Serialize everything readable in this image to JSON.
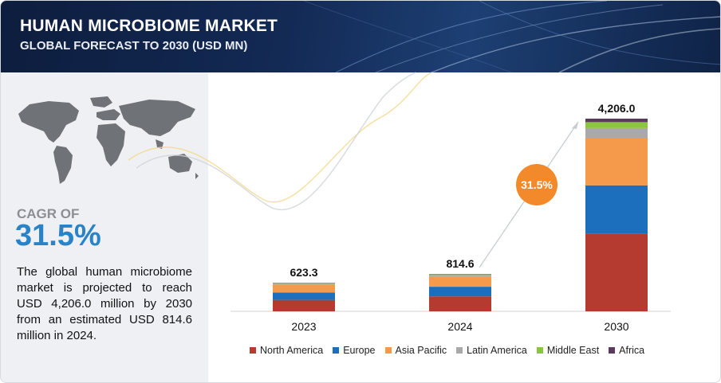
{
  "header": {
    "title": "HUMAN MICROBIOME MARKET",
    "subtitle": "GLOBAL FORECAST TO 2030 (USD MN)"
  },
  "sidebar": {
    "cagr_label": "CAGR OF",
    "cagr_value": "31.5%",
    "description": "The global human microbiome market is projected to reach USD 4,206.0 million by 2030 from an estimated USD 814.6 million in 2024.",
    "map_icon": "world-map-icon"
  },
  "chart_data": {
    "type": "bar",
    "stacked": true,
    "categories": [
      "2023",
      "2024",
      "2030"
    ],
    "totals": [
      623.3,
      814.6,
      4206.0
    ],
    "total_labels": [
      "623.3",
      "814.6",
      "4,206.0"
    ],
    "series": [
      {
        "name": "North America",
        "color": "#b53a30",
        "values": [
          250,
          327,
          1700
        ]
      },
      {
        "name": "Europe",
        "color": "#1c6fbc",
        "values": [
          160,
          210,
          1050
        ]
      },
      {
        "name": "Asia Pacific",
        "color": "#f59a4a",
        "values": [
          165,
          215,
          1030
        ]
      },
      {
        "name": "Latin America",
        "color": "#a9a9a9",
        "values": [
          28,
          35,
          220
        ]
      },
      {
        "name": "Middle East",
        "color": "#8cc63f",
        "values": [
          15,
          20,
          130
        ]
      },
      {
        "name": "Africa",
        "color": "#5b3a5e",
        "values": [
          5.3,
          7.6,
          76
        ]
      }
    ],
    "cagr_annotation": "31.5%",
    "ylim": [
      0,
      4206.0
    ],
    "legend_position": "bottom",
    "grid": false
  }
}
